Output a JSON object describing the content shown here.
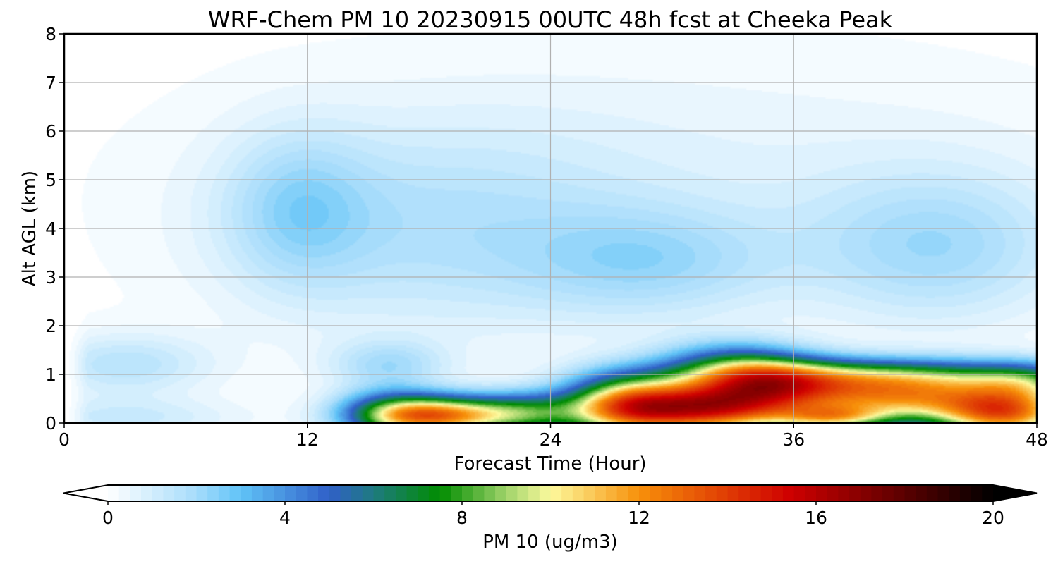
{
  "chart_data": {
    "type": "heatmap",
    "title": "WRF-Chem PM 10  20230915 00UTC 48h fcst at Cheeka Peak",
    "xlabel": "Forecast Time (Hour)",
    "ylabel": "Alt AGL (km)",
    "xlim": [
      0,
      48
    ],
    "ylim": [
      0,
      8
    ],
    "x_ticks": [
      "0",
      "12",
      "24",
      "36",
      "48"
    ],
    "y_ticks": [
      "0",
      "1",
      "2",
      "3",
      "4",
      "5",
      "6",
      "7",
      "8"
    ],
    "grid": true,
    "colorbar": {
      "label": "PM 10  (ug/m3)",
      "range": [
        0,
        20
      ],
      "ticks": [
        "0",
        "4",
        "8",
        "12",
        "16",
        "20"
      ],
      "extend": "both",
      "stops": [
        {
          "v": 0,
          "c": "#ffffff"
        },
        {
          "v": 2,
          "c": "#a6dcfb"
        },
        {
          "v": 3,
          "c": "#60c3f7"
        },
        {
          "v": 5,
          "c": "#3060c8"
        },
        {
          "v": 6,
          "c": "#1f7a80"
        },
        {
          "v": 7.5,
          "c": "#008c00"
        },
        {
          "v": 9,
          "c": "#9fd36a"
        },
        {
          "v": 10,
          "c": "#fdfa9d"
        },
        {
          "v": 12,
          "c": "#f7900a"
        },
        {
          "v": 15.4,
          "c": "#cf0000"
        },
        {
          "v": 18,
          "c": "#5a0000"
        },
        {
          "v": 20,
          "c": "#000000"
        }
      ]
    },
    "field_features": [
      {
        "t": 16,
        "z": 1.2,
        "st": 2.0,
        "sz": 0.35,
        "a": 1.8
      },
      {
        "t": 3,
        "z": 1.2,
        "st": 3.0,
        "sz": 0.45,
        "a": 1.6
      },
      {
        "t": 3,
        "z": 0.1,
        "st": 4.0,
        "sz": 0.3,
        "a": 1.2
      },
      {
        "t": 11.5,
        "z": 4.4,
        "st": 2.5,
        "sz": 1.1,
        "a": 1.6
      },
      {
        "t": 18,
        "z": 3.9,
        "st": 7.0,
        "sz": 1.5,
        "a": 1.4
      },
      {
        "t": 29,
        "z": 3.3,
        "st": 4.5,
        "sz": 0.8,
        "a": 1.7
      },
      {
        "t": 43,
        "z": 3.6,
        "st": 4.5,
        "sz": 1.1,
        "a": 1.9
      },
      {
        "t": 30,
        "z": 5.2,
        "st": 15.0,
        "sz": 1.8,
        "a": 0.6
      },
      {
        "t": 18.5,
        "z": 0.15,
        "st": 2.5,
        "sz": 0.28,
        "a": 11.5
      },
      {
        "t": 16,
        "z": 0.2,
        "st": 1.8,
        "sz": 0.35,
        "a": 4.0
      },
      {
        "t": 23,
        "z": 0.2,
        "st": 2.0,
        "sz": 0.3,
        "a": 5.5
      },
      {
        "t": 31.5,
        "z": 0.3,
        "st": 3.2,
        "sz": 0.4,
        "a": 14.0
      },
      {
        "t": 27.5,
        "z": 0.35,
        "st": 2.0,
        "sz": 0.45,
        "a": 8.0
      },
      {
        "t": 35,
        "z": 0.8,
        "st": 2.5,
        "sz": 0.35,
        "a": 6.5
      },
      {
        "t": 41,
        "z": 0.55,
        "st": 4.0,
        "sz": 0.35,
        "a": 10.5
      },
      {
        "t": 46.5,
        "z": 0.15,
        "st": 2.5,
        "sz": 0.35,
        "a": 11.0
      },
      {
        "t": 38,
        "z": 0.1,
        "st": 2.0,
        "sz": 0.18,
        "a": 6.5
      },
      {
        "t": 33,
        "z": 1.2,
        "st": 2.5,
        "sz": 0.35,
        "a": 4.5
      },
      {
        "t": 40,
        "z": 1.0,
        "st": 6.0,
        "sz": 0.25,
        "a": 5.0
      },
      {
        "t": 47.5,
        "z": 0.8,
        "st": 2.0,
        "sz": 0.3,
        "a": 4.5
      }
    ]
  }
}
